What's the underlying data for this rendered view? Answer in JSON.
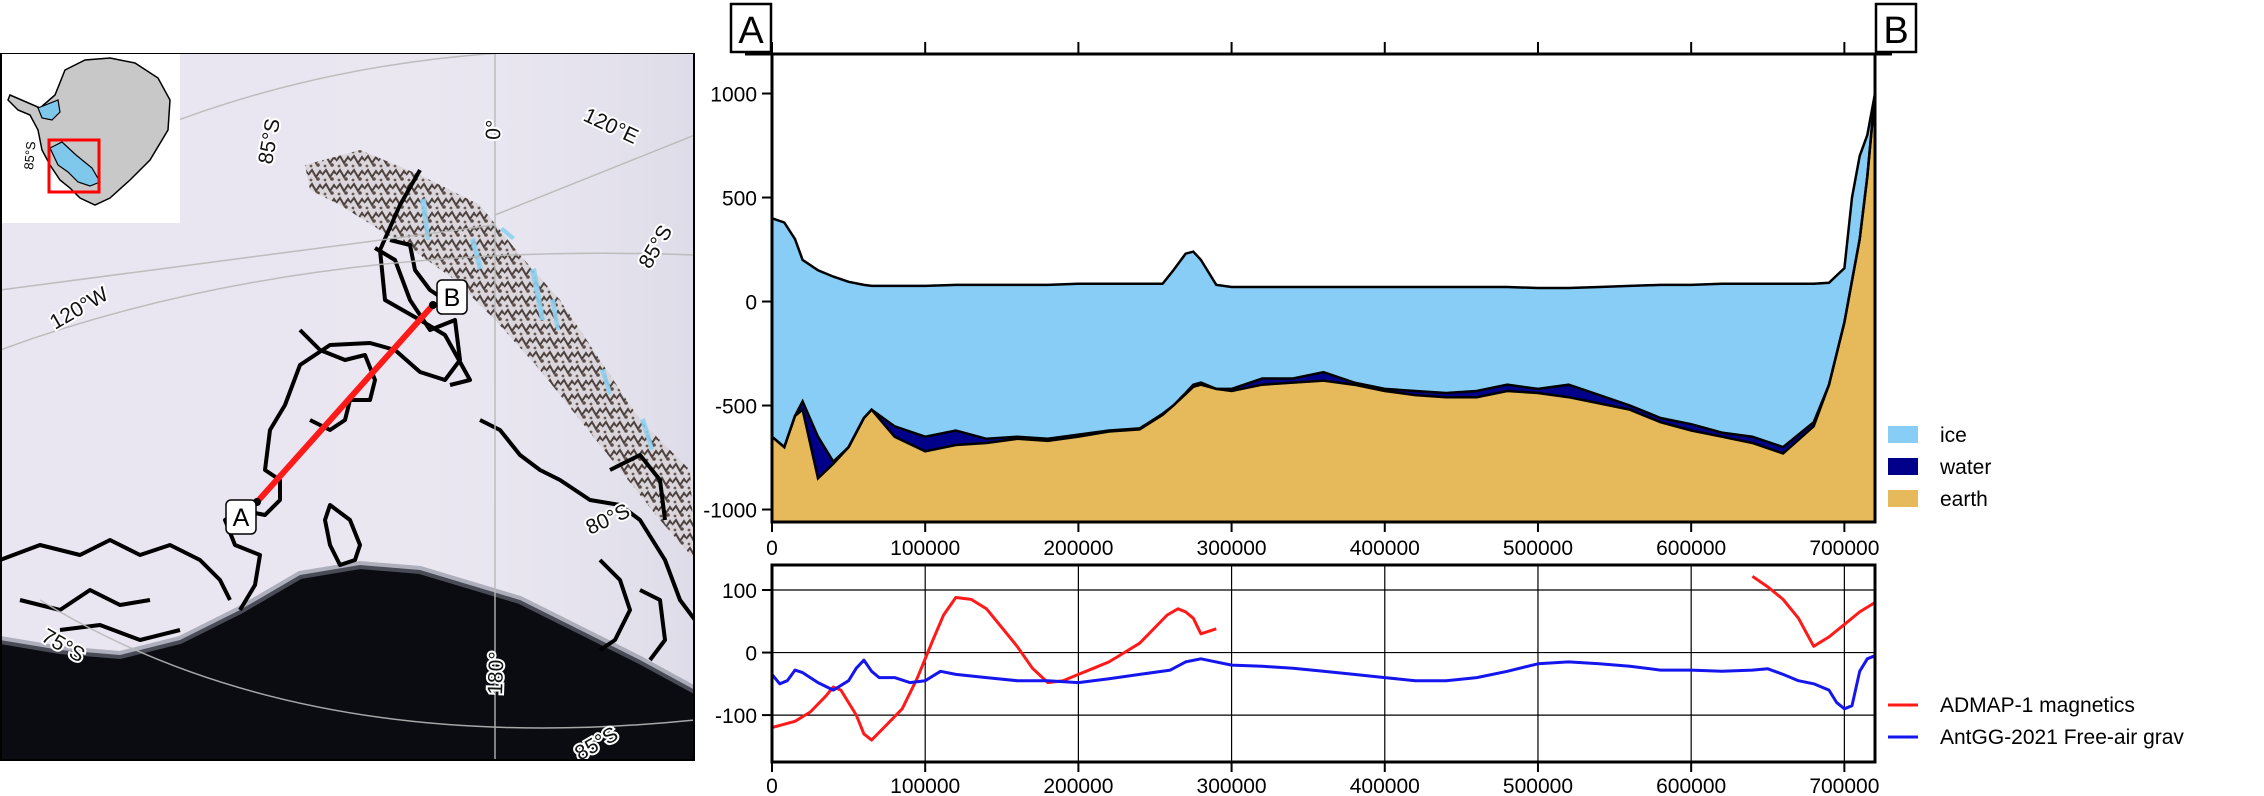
{
  "map": {
    "graticule_labels": [
      "85°S",
      "0°",
      "120°E",
      "85°S",
      "120°W",
      "80°S",
      "75°S",
      "180°",
      "85°S"
    ],
    "point_a": "A",
    "point_b": "B",
    "colors": {
      "ice_shelf": "#7fc8ec",
      "land": "#c8c8c8",
      "ocean": "#0a0c12",
      "profile_line": "#ff1a1a",
      "inset_box": "#ff0000"
    }
  },
  "chart_data": [
    {
      "type": "area",
      "end_labels": [
        "A",
        "B"
      ],
      "xlim": [
        0,
        720000
      ],
      "ylim": [
        -1060,
        1190
      ],
      "xticks": [
        0,
        100000,
        200000,
        300000,
        400000,
        500000,
        600000,
        700000
      ],
      "yticks": [
        1000,
        500,
        0,
        -500,
        -1000
      ],
      "legend_position": "right",
      "series": [
        {
          "name": "ice",
          "color": "#87cdf5"
        },
        {
          "name": "water",
          "color": "#00008b"
        },
        {
          "name": "earth",
          "color": "#e6b95a"
        }
      ],
      "x": [
        0,
        8000,
        15000,
        20000,
        30000,
        40000,
        50000,
        60000,
        65000,
        80000,
        100000,
        120000,
        140000,
        160000,
        180000,
        200000,
        220000,
        240000,
        255000,
        262000,
        270000,
        275000,
        280000,
        290000,
        300000,
        320000,
        340000,
        360000,
        380000,
        400000,
        420000,
        440000,
        460000,
        480000,
        500000,
        520000,
        540000,
        560000,
        580000,
        600000,
        620000,
        640000,
        660000,
        680000,
        690000,
        700000,
        705000,
        710000,
        715000,
        720000
      ],
      "surface": [
        400,
        380,
        300,
        200,
        150,
        120,
        95,
        80,
        75,
        75,
        75,
        80,
        80,
        80,
        80,
        85,
        85,
        85,
        85,
        150,
        230,
        240,
        200,
        80,
        70,
        70,
        70,
        70,
        70,
        70,
        70,
        70,
        70,
        70,
        65,
        65,
        70,
        75,
        80,
        80,
        85,
        85,
        85,
        85,
        90,
        160,
        500,
        700,
        800,
        1000
      ],
      "ice_base": [
        -650,
        -700,
        -550,
        -480,
        -650,
        -770,
        -700,
        -560,
        -520,
        -600,
        -650,
        -620,
        -660,
        -650,
        -660,
        -640,
        -620,
        -610,
        -540,
        -500,
        -440,
        -400,
        -390,
        -420,
        -420,
        -370,
        -370,
        -340,
        -390,
        -420,
        -430,
        -440,
        -430,
        -400,
        -420,
        -400,
        -450,
        -500,
        -560,
        -590,
        -630,
        -650,
        -700,
        -580,
        -400,
        -100,
        100,
        300,
        600,
        1000
      ],
      "bed": [
        -650,
        -700,
        -550,
        -520,
        -850,
        -780,
        -700,
        -560,
        -520,
        -650,
        -720,
        -690,
        -680,
        -660,
        -670,
        -650,
        -625,
        -615,
        -545,
        -500,
        -445,
        -410,
        -400,
        -420,
        -430,
        -400,
        -390,
        -380,
        -400,
        -430,
        -450,
        -460,
        -460,
        -430,
        -440,
        -460,
        -490,
        -520,
        -580,
        -620,
        -650,
        -680,
        -730,
        -600,
        -400,
        -100,
        100,
        300,
        600,
        1000
      ]
    },
    {
      "type": "line",
      "xlim": [
        0,
        720000
      ],
      "ylim": [
        -175,
        140
      ],
      "xticks": [
        0,
        100000,
        200000,
        300000,
        400000,
        500000,
        600000,
        700000
      ],
      "yticks": [
        100,
        0,
        -100
      ],
      "grid": true,
      "legend_position": "right",
      "series": [
        {
          "name": "ADMAP-1 magnetics",
          "color": "#ff1a1a",
          "segments": [
            {
              "x": [
                0,
                15000,
                25000,
                35000,
                40000,
                45000,
                55000,
                60000,
                65000,
                75000,
                85000,
                95000,
                105000,
                112000,
                120000,
                130000,
                140000,
                150000,
                160000,
                170000,
                180000,
                190000,
                200000,
                210000,
                220000,
                230000,
                240000,
                250000,
                258000,
                265000,
                270000,
                275000,
                280000,
                290000
              ],
              "y": [
                -120,
                -110,
                -95,
                -70,
                -55,
                -60,
                -100,
                -130,
                -140,
                -115,
                -90,
                -40,
                20,
                60,
                88,
                85,
                70,
                40,
                10,
                -25,
                -48,
                -45,
                -35,
                -25,
                -15,
                0,
                15,
                40,
                60,
                70,
                65,
                55,
                30,
                38
              ]
            },
            {
              "x": [
                640000,
                650000,
                660000,
                670000,
                680000,
                690000,
                700000,
                710000,
                720000
              ],
              "y": [
                122,
                105,
                85,
                55,
                10,
                25,
                45,
                65,
                80
              ]
            }
          ]
        },
        {
          "name": "AntGG-2021 Free-air grav",
          "color": "#1515ee",
          "segments": [
            {
              "x": [
                0,
                5000,
                10000,
                15000,
                20000,
                30000,
                40000,
                50000,
                55000,
                60000,
                65000,
                70000,
                80000,
                90000,
                100000,
                110000,
                120000,
                140000,
                160000,
                180000,
                200000,
                220000,
                240000,
                260000,
                270000,
                280000,
                300000,
                320000,
                340000,
                360000,
                380000,
                400000,
                420000,
                440000,
                460000,
                480000,
                500000,
                520000,
                540000,
                560000,
                580000,
                600000,
                620000,
                640000,
                650000,
                660000,
                670000,
                680000,
                690000,
                695000,
                700000,
                705000,
                710000,
                715000,
                720000
              ],
              "y": [
                -35,
                -50,
                -45,
                -28,
                -32,
                -48,
                -60,
                -45,
                -25,
                -12,
                -30,
                -40,
                -40,
                -48,
                -45,
                -30,
                -35,
                -40,
                -45,
                -45,
                -48,
                -42,
                -35,
                -28,
                -15,
                -10,
                -20,
                -22,
                -25,
                -30,
                -35,
                -40,
                -45,
                -45,
                -40,
                -30,
                -18,
                -15,
                -18,
                -22,
                -28,
                -28,
                -30,
                -28,
                -26,
                -35,
                -45,
                -50,
                -60,
                -80,
                -90,
                -85,
                -30,
                -10,
                -5
              ]
            }
          ]
        }
      ]
    }
  ]
}
